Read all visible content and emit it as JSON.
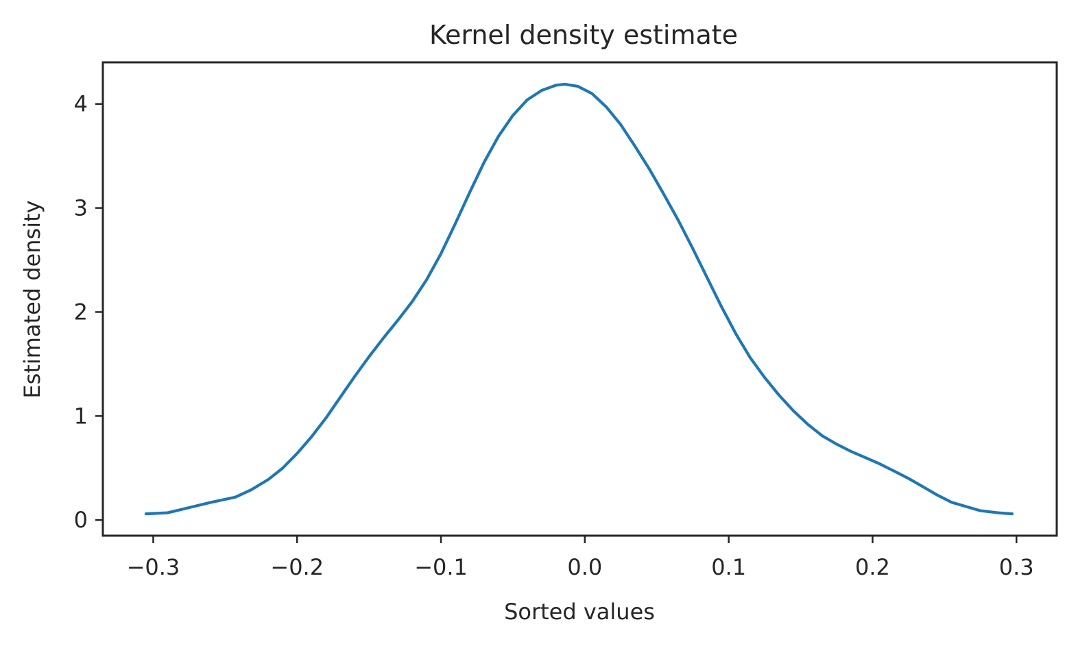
{
  "chart_data": {
    "type": "line",
    "title": "Kernel density estimate",
    "xlabel": "Sorted values",
    "ylabel": "Estimated density",
    "xlim": [
      -0.335,
      0.328
    ],
    "ylim": [
      -0.15,
      4.4
    ],
    "xticks": [
      -0.3,
      -0.2,
      -0.1,
      0.0,
      0.1,
      0.2,
      0.3
    ],
    "xtick_labels": [
      "−0.3",
      "−0.2",
      "−0.1",
      "0.0",
      "0.1",
      "0.2",
      "0.3"
    ],
    "yticks": [
      0,
      1,
      2,
      3,
      4
    ],
    "ytick_labels": [
      "0",
      "1",
      "2",
      "3",
      "4"
    ],
    "grid": false,
    "legend": "none",
    "colors": {
      "line": "#1f77b4",
      "axes": "#262626",
      "text": "#262626"
    },
    "series": [
      {
        "x": [
          -0.305,
          -0.29,
          -0.275,
          -0.26,
          -0.243,
          -0.232,
          -0.22,
          -0.21,
          -0.2,
          -0.19,
          -0.18,
          -0.17,
          -0.16,
          -0.15,
          -0.14,
          -0.13,
          -0.12,
          -0.11,
          -0.1,
          -0.09,
          -0.08,
          -0.07,
          -0.06,
          -0.05,
          -0.04,
          -0.03,
          -0.02,
          -0.014,
          -0.005,
          0.005,
          0.015,
          0.025,
          0.035,
          0.045,
          0.055,
          0.065,
          0.075,
          0.085,
          0.095,
          0.105,
          0.115,
          0.125,
          0.135,
          0.145,
          0.155,
          0.165,
          0.175,
          0.185,
          0.195,
          0.205,
          0.215,
          0.225,
          0.235,
          0.245,
          0.255,
          0.265,
          0.275,
          0.287,
          0.297
        ],
        "y": [
          0.06,
          0.07,
          0.12,
          0.17,
          0.22,
          0.29,
          0.39,
          0.5,
          0.64,
          0.8,
          0.98,
          1.18,
          1.38,
          1.57,
          1.75,
          1.92,
          2.1,
          2.31,
          2.56,
          2.85,
          3.15,
          3.44,
          3.69,
          3.89,
          4.04,
          4.13,
          4.18,
          4.19,
          4.17,
          4.1,
          3.97,
          3.8,
          3.59,
          3.37,
          3.13,
          2.88,
          2.61,
          2.33,
          2.05,
          1.79,
          1.56,
          1.37,
          1.2,
          1.05,
          0.92,
          0.81,
          0.73,
          0.66,
          0.6,
          0.54,
          0.47,
          0.4,
          0.32,
          0.24,
          0.17,
          0.13,
          0.09,
          0.07,
          0.06
        ]
      }
    ]
  }
}
